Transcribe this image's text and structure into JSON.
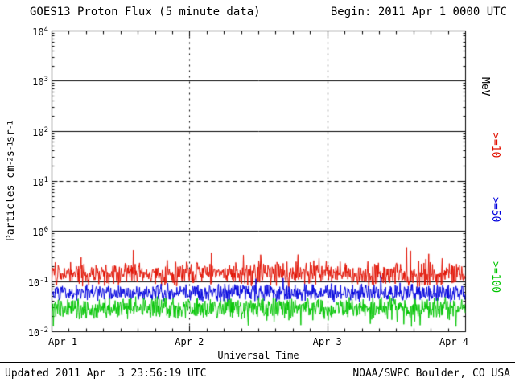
{
  "header": {
    "title": "GOES13 Proton Flux (5 minute data)",
    "begin_label": "Begin: 2011 Apr 1 0000 UTC"
  },
  "footer": {
    "updated_label": "Updated 2011 Apr  3 23:56:19 UTC",
    "source_label": "NOAA/SWPC Boulder, CO USA"
  },
  "chart_data": {
    "type": "line",
    "title": "GOES13 Proton Flux (5 minute data)",
    "subtitle": "Begin: 2011 Apr 1 0000 UTC",
    "xlabel": "Universal Time",
    "ylabel": "Particles cm-2 s-1 sr-1",
    "ylabel_parts": [
      [
        "t",
        "Particles cm"
      ],
      [
        "sup",
        "-2"
      ],
      [
        "t",
        "s"
      ],
      [
        "sup",
        "-1"
      ],
      [
        "t",
        "sr"
      ],
      [
        "sup",
        "-1"
      ]
    ],
    "x_tick_labels": [
      "Apr 1",
      "Apr 2",
      "Apr 3",
      "Apr 4"
    ],
    "x_range_days": [
      0,
      3
    ],
    "x_minor_tick_days": 0.125,
    "x_extent_days": 2.997,
    "y_tick_exponents": [
      4,
      3,
      2,
      1,
      0,
      -1,
      -2
    ],
    "ylim": [
      0.01,
      10000
    ],
    "solid_gridline_exponents": [
      3,
      2,
      0,
      -1
    ],
    "dashed_gridline_exponents": [
      1
    ],
    "vertical_gridline_days": [
      1,
      2
    ],
    "cadence": "5 minute",
    "points_per_series": 864,
    "axis_color": "#000000",
    "background_color": "#ffffff",
    "legend": {
      "unit_label": "MeV",
      "unit_color": "#000000"
    },
    "series": [
      {
        "name": "Protons >=10 MeV",
        "label": ">=10",
        "color": "#e11000",
        "approx_mean_flux": 0.14,
        "approx_flux_range": [
          0.07,
          0.45
        ],
        "log10_mean": -0.85,
        "log10_spread": 0.28,
        "spike_probability": 0.05,
        "spike_log10_max": 0.35,
        "seed": 20110401
      },
      {
        "name": "Protons >=50 MeV",
        "label": ">=50",
        "color": "#0000dd",
        "approx_mean_flux": 0.06,
        "approx_flux_range": [
          0.04,
          0.12
        ],
        "log10_mean": -1.22,
        "log10_spread": 0.2,
        "spike_probability": 0.04,
        "spike_log10_max": 0.2,
        "seed": 20110450
      },
      {
        "name": "Protons >=100 MeV",
        "label": ">=100",
        "color": "#00c400",
        "approx_mean_flux": 0.03,
        "approx_flux_range": [
          0.015,
          0.06
        ],
        "log10_mean": -1.53,
        "log10_spread": 0.26,
        "spike_probability": 0.05,
        "spike_log10_max": -0.25,
        "seed": 20110500
      }
    ]
  }
}
